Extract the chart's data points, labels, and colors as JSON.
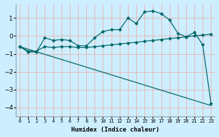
{
  "xlabel": "Humidex (Indice chaleur)",
  "bg_color": "#cceeff",
  "line_color": "#006666",
  "grid_color": "#e8b8b8",
  "xlim": [
    -0.5,
    23.5
  ],
  "ylim": [
    -4.5,
    1.8
  ],
  "yticks": [
    -4,
    -3,
    -2,
    -1,
    0,
    1
  ],
  "xticks": [
    0,
    1,
    2,
    3,
    4,
    5,
    6,
    7,
    8,
    9,
    10,
    11,
    12,
    13,
    14,
    15,
    16,
    17,
    18,
    19,
    20,
    21,
    22,
    23
  ],
  "line1_x": [
    0,
    1,
    2,
    3,
    4,
    5,
    6,
    7,
    8,
    9,
    10,
    11,
    12,
    13,
    14,
    15,
    16,
    17,
    18,
    19,
    20,
    21,
    22,
    23
  ],
  "line1_y": [
    -0.6,
    -0.9,
    -0.9,
    -0.1,
    -0.25,
    -0.2,
    -0.25,
    -0.55,
    -0.55,
    -0.1,
    0.25,
    0.35,
    0.35,
    1.0,
    0.7,
    1.35,
    1.4,
    1.25,
    0.9,
    0.15,
    -0.05,
    0.2,
    -0.5,
    -3.8
  ],
  "line2_x": [
    0,
    1,
    2,
    3,
    4,
    5,
    6,
    7,
    8,
    9,
    10,
    11,
    12,
    13,
    14,
    15,
    16,
    17,
    18,
    19,
    20,
    21,
    22,
    23
  ],
  "line2_y": [
    -0.6,
    -0.85,
    -0.85,
    -0.6,
    -0.65,
    -0.6,
    -0.6,
    -0.65,
    -0.65,
    -0.6,
    -0.55,
    -0.5,
    -0.45,
    -0.4,
    -0.35,
    -0.3,
    -0.25,
    -0.2,
    -0.15,
    -0.1,
    -0.05,
    0.0,
    0.05,
    0.1
  ],
  "line3_x": [
    0,
    23
  ],
  "line3_y": [
    -0.6,
    -3.9
  ],
  "line3_has_markers": false,
  "marker": "D",
  "markersize": 2.5,
  "linewidth": 0.9
}
